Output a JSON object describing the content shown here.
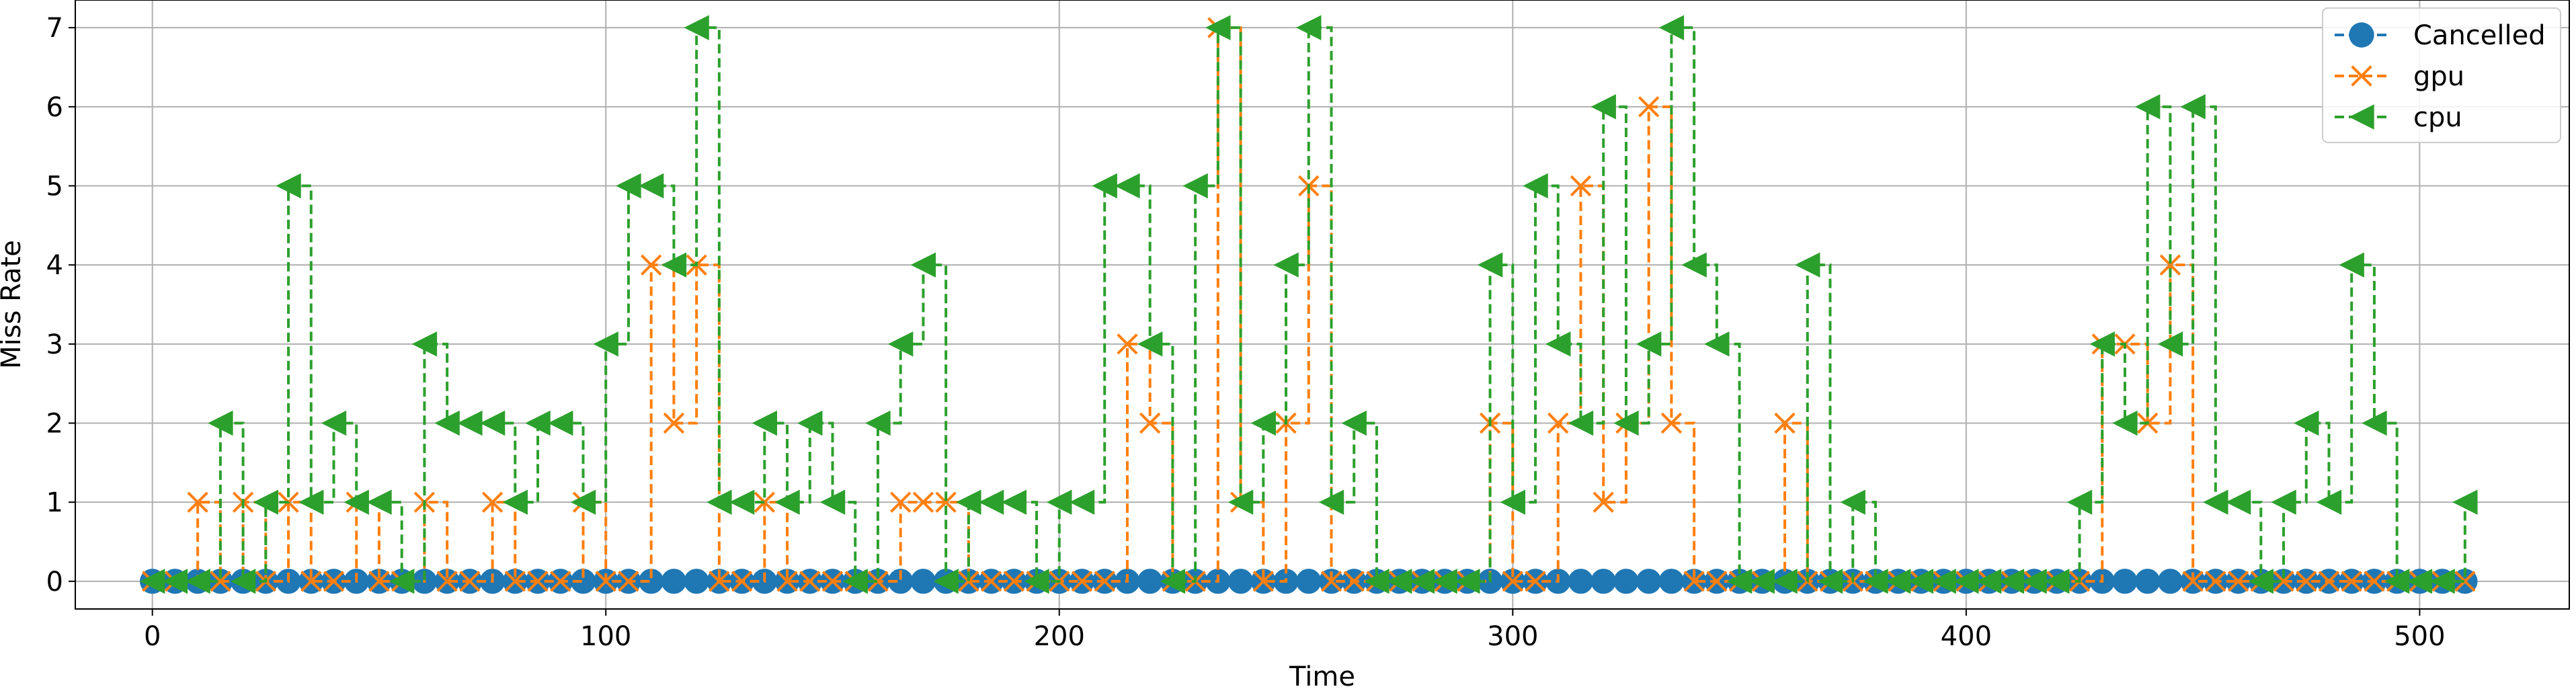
{
  "chart_data": {
    "type": "line",
    "title": "",
    "xlabel": "Time",
    "ylabel": "Miss Rate",
    "xlim": [
      -17,
      533
    ],
    "ylim": [
      -0.35,
      7.35
    ],
    "xticks": [
      0,
      100,
      200,
      300,
      400,
      500
    ],
    "yticks": [
      0,
      1,
      2,
      3,
      4,
      5,
      6,
      7
    ],
    "grid": true,
    "legend_position": "top-right",
    "x": [
      0,
      5,
      10,
      15,
      20,
      25,
      30,
      35,
      40,
      45,
      50,
      55,
      60,
      65,
      70,
      75,
      80,
      85,
      90,
      95,
      100,
      105,
      110,
      115,
      120,
      125,
      130,
      135,
      140,
      145,
      150,
      155,
      160,
      165,
      170,
      175,
      180,
      185,
      190,
      195,
      200,
      205,
      210,
      215,
      220,
      225,
      230,
      235,
      240,
      245,
      250,
      255,
      260,
      265,
      270,
      275,
      280,
      285,
      290,
      295,
      300,
      305,
      310,
      315,
      320,
      325,
      330,
      335,
      340,
      345,
      350,
      355,
      360,
      365,
      370,
      375,
      380,
      385,
      390,
      395,
      400,
      405,
      410,
      415,
      420,
      425,
      430,
      435,
      440,
      445,
      450,
      455,
      460,
      465,
      470,
      475,
      480,
      485,
      490,
      495,
      500,
      505,
      510
    ],
    "series": [
      {
        "name": "Cancelled",
        "color": "#1f77b4",
        "marker": "circle",
        "values": [
          0,
          0,
          0,
          0,
          0,
          0,
          0,
          0,
          0,
          0,
          0,
          0,
          0,
          0,
          0,
          0,
          0,
          0,
          0,
          0,
          0,
          0,
          0,
          0,
          0,
          0,
          0,
          0,
          0,
          0,
          0,
          0,
          0,
          0,
          0,
          0,
          0,
          0,
          0,
          0,
          0,
          0,
          0,
          0,
          0,
          0,
          0,
          0,
          0,
          0,
          0,
          0,
          0,
          0,
          0,
          0,
          0,
          0,
          0,
          0,
          0,
          0,
          0,
          0,
          0,
          0,
          0,
          0,
          0,
          0,
          0,
          0,
          0,
          0,
          0,
          0,
          0,
          0,
          0,
          0,
          0,
          0,
          0,
          0,
          0,
          0,
          0,
          0,
          0,
          0,
          0,
          0,
          0,
          0,
          0,
          0,
          0,
          0,
          0,
          0,
          0,
          0,
          0
        ]
      },
      {
        "name": "gpu",
        "color": "#ff7f0e",
        "marker": "x",
        "values": [
          0,
          0,
          1,
          0,
          1,
          0,
          1,
          0,
          0,
          1,
          0,
          0,
          1,
          0,
          0,
          1,
          0,
          0,
          0,
          1,
          0,
          0,
          4,
          2,
          4,
          0,
          0,
          1,
          0,
          0,
          0,
          0,
          0,
          1,
          1,
          1,
          0,
          0,
          0,
          0,
          0,
          0,
          0,
          3,
          2,
          0,
          0,
          7,
          1,
          0,
          2,
          5,
          0,
          0,
          0,
          0,
          0,
          0,
          0,
          2,
          0,
          0,
          2,
          5,
          1,
          2,
          6,
          2,
          0,
          0,
          0,
          0,
          2,
          0,
          0,
          0,
          0,
          0,
          0,
          0,
          0,
          0,
          0,
          0,
          0,
          0,
          3,
          3,
          2,
          4,
          0,
          0,
          0,
          0,
          0,
          0,
          0,
          0,
          0,
          0,
          0,
          0,
          0
        ]
      },
      {
        "name": "cpu",
        "color": "#2ca02c",
        "marker": "triangle-left",
        "values": [
          0,
          0,
          0,
          2,
          0,
          1,
          5,
          1,
          2,
          1,
          1,
          0,
          3,
          2,
          2,
          2,
          1,
          2,
          2,
          1,
          3,
          5,
          5,
          4,
          7,
          1,
          1,
          2,
          1,
          2,
          1,
          0,
          2,
          3,
          4,
          0,
          1,
          1,
          1,
          0,
          1,
          1,
          5,
          5,
          3,
          0,
          5,
          7,
          1,
          2,
          4,
          7,
          1,
          2,
          0,
          0,
          0,
          0,
          0,
          4,
          1,
          5,
          3,
          2,
          6,
          2,
          3,
          7,
          4,
          3,
          0,
          0,
          0,
          4,
          0,
          1,
          0,
          0,
          0,
          0,
          0,
          0,
          0,
          0,
          0,
          1,
          3,
          2,
          6,
          3,
          6,
          1,
          1,
          0,
          1,
          2,
          1,
          4,
          2,
          0,
          0,
          0,
          1
        ]
      }
    ]
  }
}
